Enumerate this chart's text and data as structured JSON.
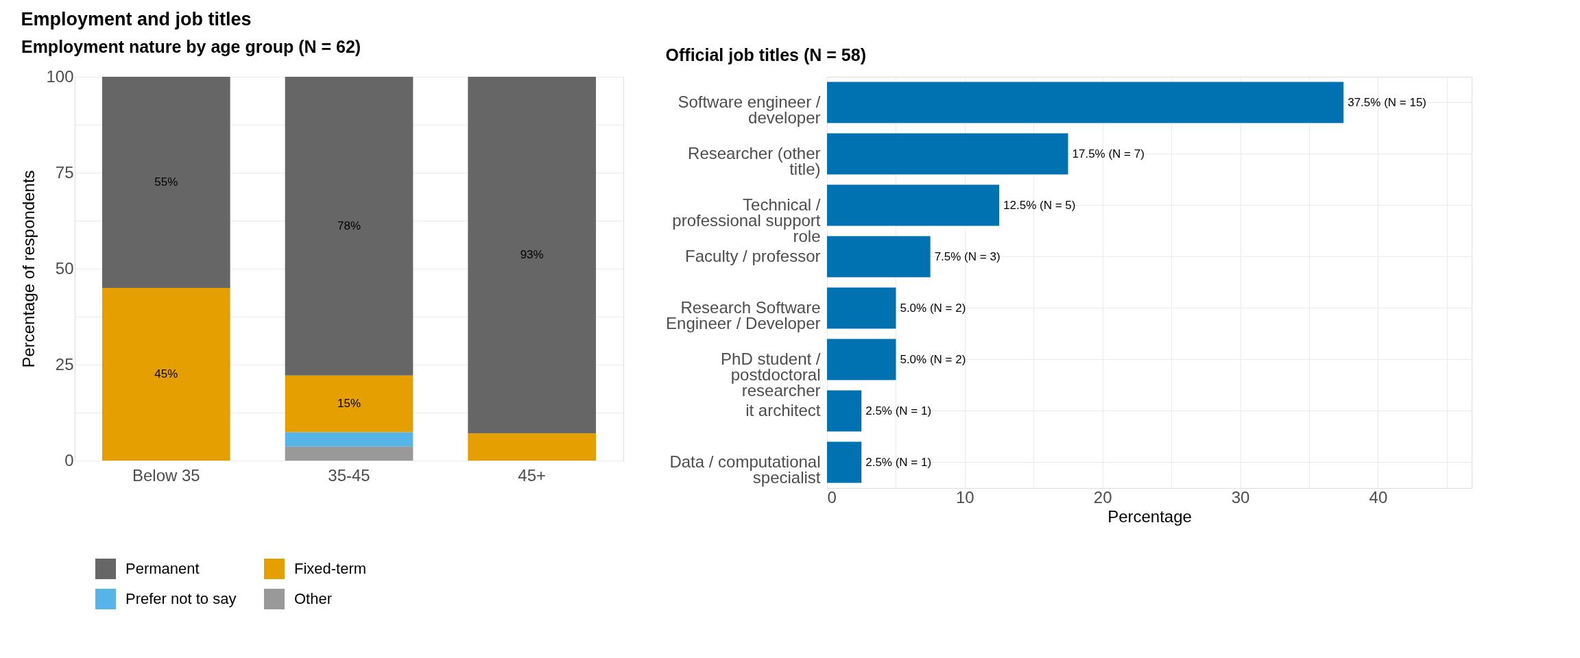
{
  "chart_data": [
    {
      "type": "bar",
      "title": "Employment and job titles",
      "subtitle": "Employment nature by age group (N = 62)",
      "ylabel": "Percentage of respondents",
      "categories": [
        "Below 35",
        "35-45",
        "45+"
      ],
      "stacked": true,
      "series": [
        {
          "name": "Other",
          "color": "#999999",
          "values": [
            0,
            3.7,
            0
          ],
          "value_labels": [
            null,
            null,
            null
          ]
        },
        {
          "name": "Prefer not to say",
          "color": "#56b4e9",
          "values": [
            0,
            3.7,
            0
          ],
          "value_labels": [
            null,
            null,
            null
          ]
        },
        {
          "name": "Fixed-term",
          "color": "#e69f00",
          "values": [
            45,
            14.8,
            7.1
          ],
          "value_labels": [
            "45%",
            "15%",
            null
          ]
        },
        {
          "name": "Permanent",
          "color": "#666666",
          "values": [
            55,
            77.8,
            92.9
          ],
          "value_labels": [
            "55%",
            "78%",
            "93%"
          ]
        }
      ],
      "ylim": [
        0,
        100
      ],
      "yticks": [
        0,
        {
          "value": 12.5,
          "label": null
        },
        25,
        {
          "value": 37.5,
          "label": null
        },
        50,
        {
          "value": 62.5,
          "label": null
        },
        75,
        {
          "value": 87.5,
          "label": null
        },
        100
      ],
      "grid": true,
      "legend": "bottom"
    },
    {
      "type": "bar",
      "subtitle": "Official job titles (N = 58)",
      "xlabel": "Percentage",
      "orientation": "horizontal",
      "categories": [
        "Software engineer / developer",
        "Researcher (other title)",
        "Technical / professional support role",
        "Faculty / professor",
        "Research Software Engineer / Developer",
        "PhD student / postdoctoral researcher",
        "it architect",
        "Data / computational specialist"
      ],
      "series": [
        {
          "color": "#0072b2",
          "values": [
            37.5,
            17.5,
            12.5,
            7.5,
            5.0,
            5.0,
            2.5,
            2.5
          ],
          "value_labels": [
            "37.5% (N = 15)",
            "17.5% (N = 7)",
            "12.5% (N = 5)",
            "7.5% (N = 3)",
            "5.0% (N = 2)",
            "5.0% (N = 2)",
            "2.5% (N = 1)",
            "2.5% (N = 1)"
          ]
        }
      ],
      "xlim": [
        0,
        46.8
      ],
      "xticks": [
        0,
        {
          "value": 5,
          "label": null
        },
        10,
        {
          "value": 15,
          "label": null
        },
        20,
        {
          "value": 25,
          "label": null
        },
        30,
        {
          "value": 35,
          "label": null
        },
        40,
        {
          "value": 45,
          "label": null
        }
      ],
      "grid": true
    }
  ]
}
